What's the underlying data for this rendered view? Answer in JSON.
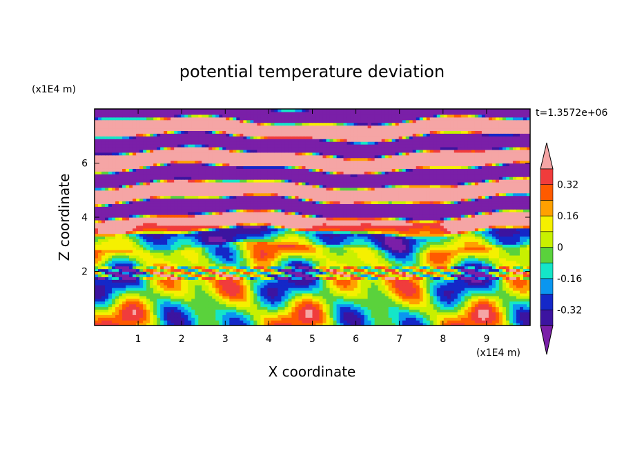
{
  "chart_data": {
    "type": "heatmap",
    "title": "potential temperature deviation",
    "xlabel": "X coordinate",
    "ylabel": "Z coordinate",
    "x_unit": "(x1E4 m)",
    "y_unit": "(x1E4 m)",
    "time_label": "t=1.3572e+06",
    "xlim": [
      0,
      10
    ],
    "ylim": [
      0,
      8
    ],
    "x_ticks": [
      1,
      2,
      3,
      4,
      5,
      6,
      7,
      8,
      9
    ],
    "y_ticks": [
      2,
      4,
      6
    ],
    "colorbar": {
      "levels": [
        -0.4,
        -0.32,
        -0.24,
        -0.16,
        -0.08,
        0,
        0.08,
        0.16,
        0.24,
        0.32,
        0.4
      ],
      "labels": [
        "0.32",
        "0.16",
        "0",
        "-0.16",
        "-0.32"
      ],
      "label_values": [
        0.32,
        0.16,
        0,
        -0.16,
        -0.32
      ],
      "colors": [
        "#7a1fa8",
        "#3c14a0",
        "#1428c8",
        "#0a96f0",
        "#14e6c8",
        "#5ad23c",
        "#c8f000",
        "#f5f000",
        "#ffa000",
        "#ff5a00",
        "#f03c3c",
        "#f5a5a5"
      ],
      "extend": "both"
    }
  }
}
